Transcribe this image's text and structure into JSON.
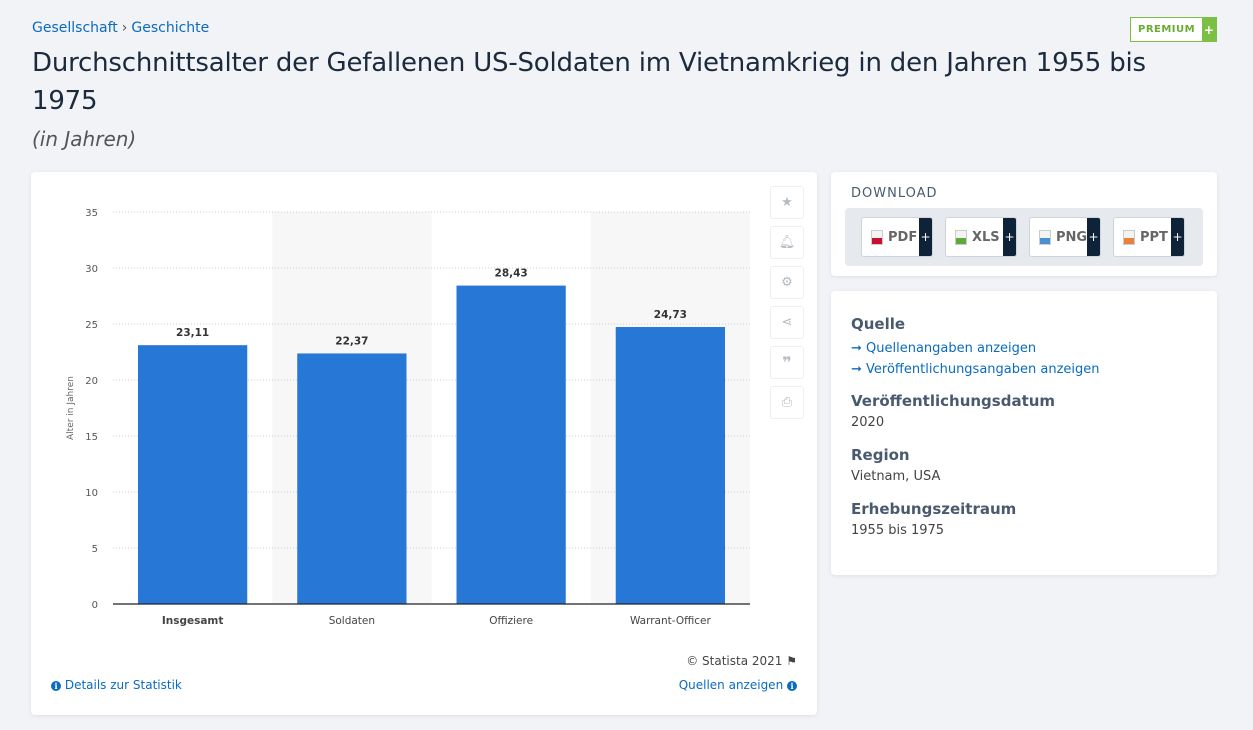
{
  "breadcrumb": [
    "Gesellschaft",
    "Geschichte"
  ],
  "premium": {
    "label": "PREMIUM",
    "plus": "+"
  },
  "title": "Durchschnittsalter der Gefallenen US-Soldaten im Vietnamkrieg in den Jahren 1955 bis 1975",
  "subtitle": "(in Jahren)",
  "chart_data": {
    "type": "bar",
    "categories": [
      "Insgesamt",
      "Soldaten",
      "Offiziere",
      "Warrant-Officer"
    ],
    "values": [
      23.11,
      22.37,
      28.43,
      24.73
    ],
    "value_labels": [
      "23,11",
      "22,37",
      "28,43",
      "24,73"
    ],
    "ylabel": "Alter in Jahren",
    "ylim": [
      0,
      35
    ],
    "yticks": [
      "0",
      "5",
      "10",
      "15",
      "20",
      "25",
      "30",
      "35"
    ],
    "grid": true,
    "bar_color": "#2677d6"
  },
  "tools": [
    "star-icon",
    "bell-icon",
    "gear-icon",
    "share-icon",
    "quote-icon",
    "print-icon"
  ],
  "copyright": "© Statista 2021",
  "footer": {
    "details": "Details zur Statistik",
    "sources": "Quellen anzeigen"
  },
  "download": {
    "title": "DOWNLOAD",
    "buttons": [
      {
        "label": "PDF",
        "color": "#c8102e"
      },
      {
        "label": "XLS",
        "color": "#5fa83a"
      },
      {
        "label": "PNG",
        "color": "#4a8fd0"
      },
      {
        "label": "PPT",
        "color": "#e8823a"
      }
    ]
  },
  "meta": {
    "quelle": "Quelle",
    "links": [
      "Quellenangaben anzeigen",
      "Veröffentlichungsangaben anzeigen"
    ],
    "date_label": "Veröffentlichungsdatum",
    "date": "2020",
    "region_label": "Region",
    "region": "Vietnam, USA",
    "period_label": "Erhebungszeitraum",
    "period": "1955 bis 1975"
  }
}
